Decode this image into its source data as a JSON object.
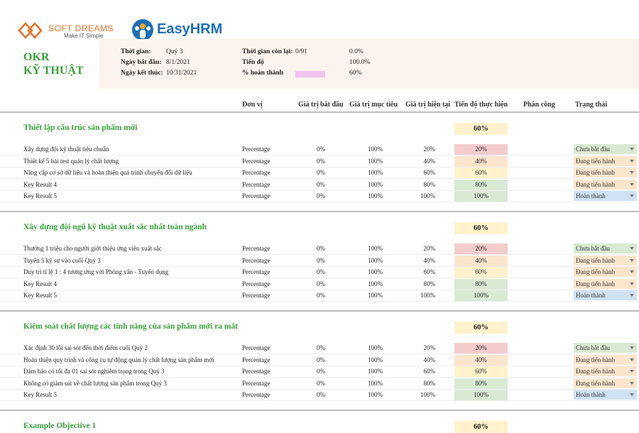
{
  "logos": {
    "soft_dreams": "SOFT DREAMS",
    "soft_dreams_tagline": "Make IT Simple",
    "easyhrm": "EasyHRM"
  },
  "header": {
    "title_line1": "OKR",
    "title_line2": "KỸ THUẬT",
    "meta": [
      {
        "label": "Thời gian:",
        "value": "Quý 3"
      },
      {
        "label": "Ngày bắt đầu:",
        "value": "8/1/2021"
      },
      {
        "label": "Ngày kết thúc:",
        "value": "10/31/2021"
      }
    ],
    "stats": [
      {
        "label": "Thời gian còn lại:",
        "value": "0/91",
        "percent": "0.0%"
      },
      {
        "label": "Tiến độ",
        "value": "",
        "percent": "100.0%"
      },
      {
        "label": "% hoàn thành",
        "bar_color": "#f0c2ee",
        "percent": "60%"
      }
    ]
  },
  "columns": [
    "Đơn vị",
    "Giá trị bắt đầu",
    "Giá trị mục tiêu",
    "Giá trị hiện tại",
    "Tiến độ thực hiện",
    "Phân công",
    "Trạng thái"
  ],
  "objectives": [
    {
      "title": "Thiết lập cấu trúc sản phẩm mới",
      "progress": "60%",
      "key_results": [
        {
          "name": "Xây dựng đội kỹ thuật tiêu chuẩn",
          "unit": "Percentage",
          "start": "0%",
          "target": "100%",
          "current": "20%",
          "progress": "20%",
          "progress_color": "#f4cccc",
          "status": "Chưa bắt đầu",
          "status_color": "#d9ead3"
        },
        {
          "name": "Thiết kế 5 bài test quản lý chất lượng",
          "unit": "Percentage",
          "start": "0%",
          "target": "100%",
          "current": "40%",
          "progress": "40%",
          "progress_color": "#fce5cd",
          "status": "Đang tiến hành",
          "status_color": "#fce5cd"
        },
        {
          "name": "Nâng cấp cơ sở dữ liệu và hoàn thiện quá trình chuyển đổi dữ liệu",
          "unit": "Percentage",
          "start": "0%",
          "target": "100%",
          "current": "60%",
          "progress": "60%",
          "progress_color": "#fff2cc",
          "status": "Đang tiến hành",
          "status_color": "#fce5cd"
        },
        {
          "name": "Key Result 4",
          "unit": "Percentage",
          "start": "0%",
          "target": "100%",
          "current": "80%",
          "progress": "80%",
          "progress_color": "#d9ead3",
          "status": "Đang tiến hành",
          "status_color": "#fce5cd"
        },
        {
          "name": "Key Result 5",
          "unit": "Percentage",
          "start": "0%",
          "target": "100%",
          "current": "100%",
          "progress": "100%",
          "progress_color": "#d9ead3",
          "status": "Hoàn thành",
          "status_color": "#cfe2f3"
        }
      ]
    },
    {
      "title": "Xây dựng đội ngũ kỹ thuật xuất sắc nhất toàn ngành",
      "progress": "60%",
      "key_results": [
        {
          "name": "Thưởng 1 triệu cho người giới thiệu ứng viên xuất sắc",
          "unit": "Percentage",
          "start": "0%",
          "target": "100%",
          "current": "20%",
          "progress": "20%",
          "progress_color": "#f4cccc",
          "status": "Chưa bắt đầu",
          "status_color": "#d9ead3"
        },
        {
          "name": "Tuyển 5 kỹ sư vào cuối Quý 3",
          "unit": "Percentage",
          "start": "0%",
          "target": "100%",
          "current": "40%",
          "progress": "40%",
          "progress_color": "#fce5cd",
          "status": "Đang tiến hành",
          "status_color": "#fce5cd"
        },
        {
          "name": "Duy trì tỉ lệ 1 : 4 tương ứng với Phỏng vấn - Tuyển dụng",
          "unit": "Percentage",
          "start": "0%",
          "target": "100%",
          "current": "60%",
          "progress": "60%",
          "progress_color": "#fff2cc",
          "status": "Đang tiến hành",
          "status_color": "#fce5cd"
        },
        {
          "name": "Key Result 4",
          "unit": "Percentage",
          "start": "0%",
          "target": "100%",
          "current": "80%",
          "progress": "80%",
          "progress_color": "#d9ead3",
          "status": "Đang tiến hành",
          "status_color": "#fce5cd"
        },
        {
          "name": "Key Result 5",
          "unit": "Percentage",
          "start": "0%",
          "target": "100%",
          "current": "100%",
          "progress": "100%",
          "progress_color": "#d9ead3",
          "status": "Hoàn thành",
          "status_color": "#cfe2f3"
        }
      ]
    },
    {
      "title": "Kiểm soát chất lượng các tính năng của sản phẩm mới ra mắt",
      "progress": "60%",
      "key_results": [
        {
          "name": "Xác định 30 lỗi sai sót đến thời điểm cuối Quý 2",
          "unit": "Percentage",
          "start": "0%",
          "target": "100%",
          "current": "20%",
          "progress": "20%",
          "progress_color": "#f4cccc",
          "status": "Chưa bắt đầu",
          "status_color": "#d9ead3"
        },
        {
          "name": "Hoàn thiện quy trình và công cụ tự động quản lý chất lượng sản phẩm mới",
          "unit": "Percentage",
          "start": "0%",
          "target": "100%",
          "current": "40%",
          "progress": "40%",
          "progress_color": "#fce5cd",
          "status": "Đang tiến hành",
          "status_color": "#fce5cd"
        },
        {
          "name": "Đảm bảo có tối đa 01 sai sót nghiêm trọng trong Quý 3",
          "unit": "Percentage",
          "start": "0%",
          "target": "100%",
          "current": "60%",
          "progress": "60%",
          "progress_color": "#fff2cc",
          "status": "Đang tiến hành",
          "status_color": "#fce5cd"
        },
        {
          "name": "Không có giảm sút về chất lượng sản phẩm trong Quý 3",
          "unit": "Percentage",
          "start": "0%",
          "target": "100%",
          "current": "80%",
          "progress": "80%",
          "progress_color": "#d9ead3",
          "status": "Đang tiến hành",
          "status_color": "#fce5cd"
        },
        {
          "name": "Key Result 5",
          "unit": "Percentage",
          "start": "0%",
          "target": "100%",
          "current": "100%",
          "progress": "100%",
          "progress_color": "#d9ead3",
          "status": "Hoàn thành",
          "status_color": "#cfe2f3"
        }
      ]
    },
    {
      "title": "Example Objective 1",
      "progress": "60%",
      "key_results": []
    }
  ]
}
